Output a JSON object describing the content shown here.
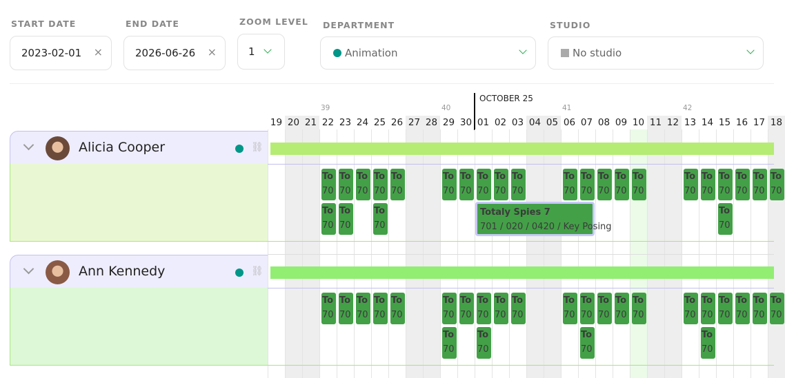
{
  "filters": {
    "start_date": {
      "label": "START DATE",
      "value": "2023-02-01"
    },
    "end_date": {
      "label": "END DATE",
      "value": "2026-06-26"
    },
    "zoom_level": {
      "label": "ZOOM LEVEL",
      "value": "1"
    },
    "department": {
      "label": "DEPARTMENT",
      "value": "Animation",
      "color": "#009688"
    },
    "studio": {
      "label": "STUDIO",
      "value": "No studio",
      "color": "#aaaaaa"
    },
    "clear_icon": "×"
  },
  "timeline": {
    "month_label": "OCTOBER 25",
    "days": [
      "19",
      "20",
      "21",
      "22",
      "23",
      "24",
      "25",
      "26",
      "27",
      "28",
      "29",
      "30",
      "01",
      "02",
      "03",
      "04",
      "05",
      "06",
      "07",
      "08",
      "09",
      "10",
      "11",
      "12",
      "13",
      "14",
      "15",
      "16",
      "17",
      "18"
    ],
    "weekend_days": [
      1,
      2,
      8,
      9,
      15,
      16,
      22,
      23,
      29
    ],
    "today_index": 21,
    "week_numbers": [
      {
        "label": "39",
        "day_index": 3
      },
      {
        "label": "40",
        "day_index": 10
      },
      {
        "label": "41",
        "day_index": 17
      },
      {
        "label": "42",
        "day_index": 24
      }
    ]
  },
  "people": [
    {
      "name": "Alicia Cooper",
      "avatar_color": "#6b4a3a",
      "bar_color": "#b5ec74",
      "body_color": "#e9f8d3",
      "status_color": "#009688",
      "task_title": "To",
      "task_sub": "70",
      "tasks_row1": [
        3,
        4,
        5,
        6,
        7,
        10,
        11,
        12,
        13,
        14,
        17,
        18,
        19,
        20,
        21,
        24,
        25,
        26,
        27,
        28,
        29
      ],
      "tasks_row2": [
        3,
        4,
        6,
        26
      ],
      "expanded_task": {
        "title": "Totaly Spies 7",
        "subtitle": "701 / 020 / 0420 / Key Posing",
        "start_index": 12,
        "end_index": 19
      }
    },
    {
      "name": "Ann Kennedy",
      "avatar_color": "#8a5a44",
      "bar_color": "#92ee72",
      "body_color": "#ddf8d6",
      "status_color": "#009688",
      "task_title": "To",
      "task_sub": "70",
      "tasks_row1": [
        3,
        4,
        5,
        6,
        7,
        10,
        11,
        12,
        13,
        14,
        17,
        18,
        19,
        20,
        21,
        24,
        25,
        26,
        27,
        28,
        29
      ],
      "tasks_row2": [
        10,
        12,
        18,
        25
      ]
    }
  ],
  "icons": {
    "link": "🔗"
  }
}
